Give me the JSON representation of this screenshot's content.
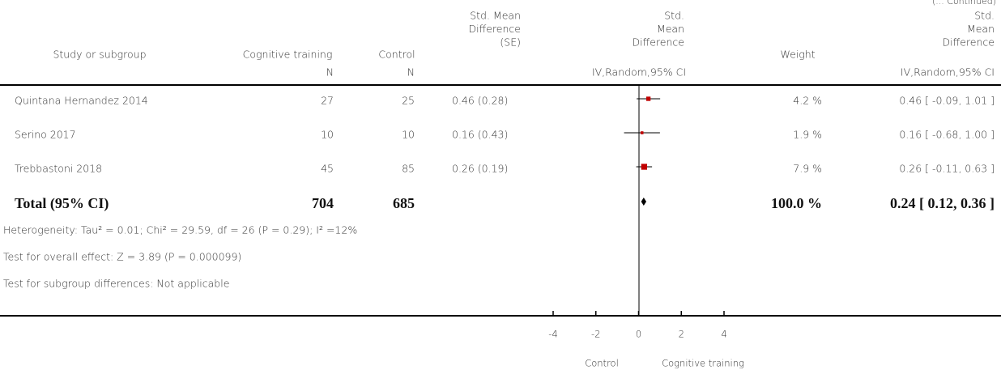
{
  "chart_data": {
    "type": "forest",
    "continued_note": "(... Continued)",
    "headers": {
      "study": "Study or subgroup",
      "treatment": "Cognitive training",
      "control": "Control",
      "smd_se": [
        "Std. Mean",
        "Difference",
        "(SE)"
      ],
      "plot": [
        "Std.",
        "Mean",
        "Difference"
      ],
      "weight": "Weight",
      "ci": [
        "Std.",
        "Mean",
        "Difference"
      ],
      "treatment_unit": "N",
      "control_unit": "N",
      "plot_method": "IV,Random,95% CI",
      "ci_method": "IV,Random,95% CI"
    },
    "studies": [
      {
        "name": "Quintana Hernandez 2014",
        "n_treatment": 27,
        "n_control": 25,
        "smd_se": "0.46 (0.28)",
        "estimate": 0.46,
        "ci_low": -0.09,
        "ci_high": 1.01,
        "weight": 4.2,
        "weight_label": "4.2 %",
        "ci_label": "0.46 [ -0.09, 1.01 ]"
      },
      {
        "name": "Serino 2017",
        "n_treatment": 10,
        "n_control": 10,
        "smd_se": "0.16 (0.43)",
        "estimate": 0.16,
        "ci_low": -0.68,
        "ci_high": 1.0,
        "weight": 1.9,
        "weight_label": "1.9 %",
        "ci_label": "0.16 [ -0.68, 1.00 ]"
      },
      {
        "name": "Trebbastoni 2018",
        "n_treatment": 45,
        "n_control": 85,
        "smd_se": "0.26 (0.19)",
        "estimate": 0.26,
        "ci_low": -0.11,
        "ci_high": 0.63,
        "weight": 7.9,
        "weight_label": "7.9 %",
        "ci_label": "0.26 [ -0.11, 0.63 ]"
      }
    ],
    "total": {
      "name": "Total (95% CI)",
      "n_treatment": 704,
      "n_control": 685,
      "estimate": 0.24,
      "ci_low": 0.12,
      "ci_high": 0.36,
      "weight": 100.0,
      "weight_label": "100.0 %",
      "ci_label": "0.24 [ 0.12, 0.36 ]"
    },
    "notes": [
      "Heterogeneity: Tau² = 0.01; Chi² = 29.59, df = 26 (P = 0.29); I² =12%",
      "Test for overall effect: Z = 3.89 (P = 0.000099)",
      "Test for subgroup differences: Not applicable"
    ],
    "xlim": [
      -4,
      4
    ],
    "xticks": [
      -4,
      -2,
      0,
      2,
      4
    ],
    "x_left_label": "Control",
    "x_right_label": "Cognitive training",
    "square_color": "#c00000"
  }
}
